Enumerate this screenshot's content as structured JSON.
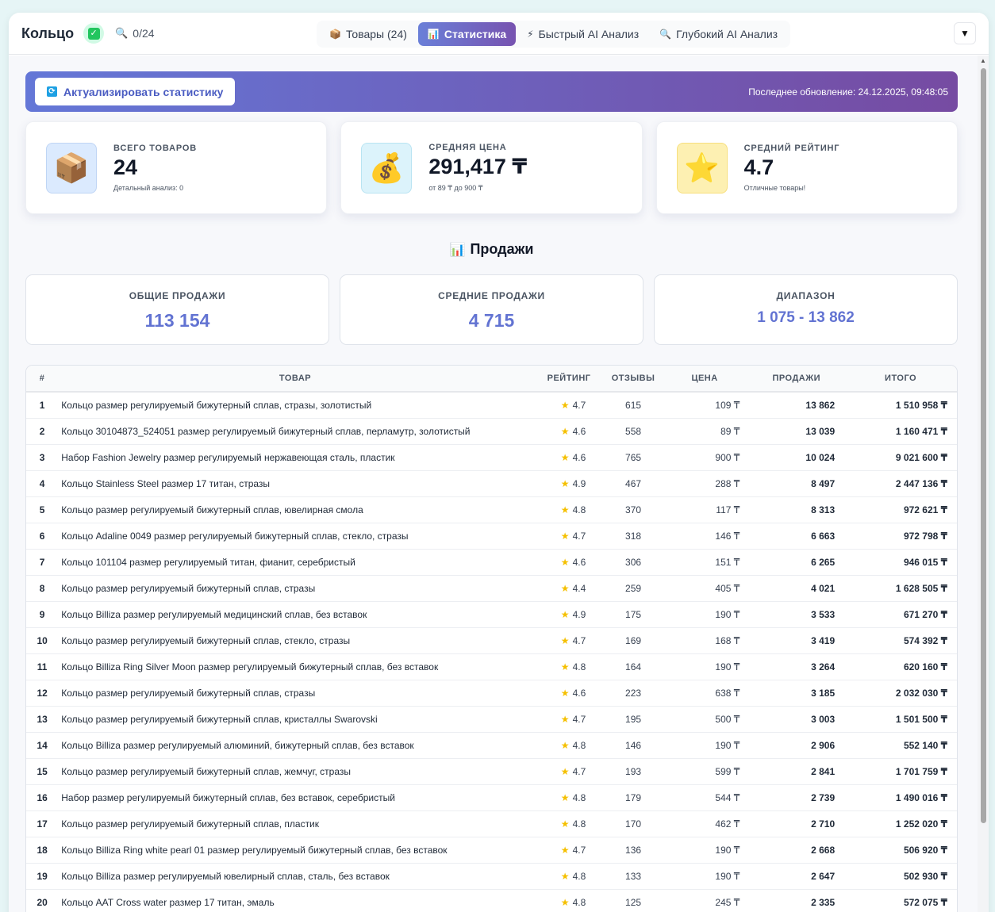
{
  "header": {
    "title": "Кольцо",
    "counter": "0/24",
    "tabs": [
      {
        "label": "Товары (24)",
        "icon": "📦"
      },
      {
        "label": "Статистика",
        "icon": "📊"
      },
      {
        "label": "Быстрый AI Анализ",
        "icon": "⚡"
      },
      {
        "label": "Глубокий AI Анализ",
        "icon": "🔍"
      }
    ],
    "dropdown_symbol": "▼"
  },
  "refresh": {
    "button_label": "Актуализировать статистику",
    "updated": "Последнее обновление: 24.12.2025, 09:48:05"
  },
  "cards": [
    {
      "label": "ВСЕГО ТОВАРОВ",
      "value": "24",
      "sub": "Детальный анализ: 0",
      "icon": "📦"
    },
    {
      "label": "СРЕДНЯЯ ЦЕНА",
      "value": "291,417 ₸",
      "sub": "от 89 ₸ до 900 ₸",
      "icon": "💰"
    },
    {
      "label": "СРЕДНИЙ РЕЙТИНГ",
      "value": "4.7",
      "sub": "Отличные товары!",
      "icon": "⭐"
    }
  ],
  "sales": {
    "title": "Продажи",
    "total": {
      "label": "ОБЩИЕ ПРОДАЖИ",
      "value": "113 154"
    },
    "average": {
      "label": "СРЕДНИЕ ПРОДАЖИ",
      "value": "4 715"
    },
    "range": {
      "label": "ДИАПАЗОН",
      "value": "1 075 - 13 862"
    }
  },
  "table": {
    "columns": [
      "#",
      "ТОВАР",
      "РЕЙТИНГ",
      "ОТЗЫВЫ",
      "ЦЕНА",
      "ПРОДАЖИ",
      "ИТОГО"
    ],
    "rows": [
      [
        "1",
        "Кольцо размер регулируемый бижутерный сплав, стразы, золотистый",
        "4.7",
        "615",
        "109 ₸",
        "13 862",
        "1 510 958 ₸"
      ],
      [
        "2",
        "Кольцо 30104873_524051 размер регулируемый бижутерный сплав, перламутр, золотистый",
        "4.6",
        "558",
        "89 ₸",
        "13 039",
        "1 160 471 ₸"
      ],
      [
        "3",
        "Набор Fashion Jewelry размер регулируемый нержавеющая сталь, пластик",
        "4.6",
        "765",
        "900 ₸",
        "10 024",
        "9 021 600 ₸"
      ],
      [
        "4",
        "Кольцо Stainless Steel размер 17 титан, стразы",
        "4.9",
        "467",
        "288 ₸",
        "8 497",
        "2 447 136 ₸"
      ],
      [
        "5",
        "Кольцо размер регулируемый бижутерный сплав, ювелирная смола",
        "4.8",
        "370",
        "117 ₸",
        "8 313",
        "972 621 ₸"
      ],
      [
        "6",
        "Кольцо Adaline 0049 размер регулируемый бижутерный сплав, стекло, стразы",
        "4.7",
        "318",
        "146 ₸",
        "6 663",
        "972 798 ₸"
      ],
      [
        "7",
        "Кольцо 101104 размер регулируемый титан, фианит, серебристый",
        "4.6",
        "306",
        "151 ₸",
        "6 265",
        "946 015 ₸"
      ],
      [
        "8",
        "Кольцо размер регулируемый бижутерный сплав, стразы",
        "4.4",
        "259",
        "405 ₸",
        "4 021",
        "1 628 505 ₸"
      ],
      [
        "9",
        "Кольцо Billiza размер регулируемый медицинский сплав, без вставок",
        "4.9",
        "175",
        "190 ₸",
        "3 533",
        "671 270 ₸"
      ],
      [
        "10",
        "Кольцо размер регулируемый бижутерный сплав, стекло, стразы",
        "4.7",
        "169",
        "168 ₸",
        "3 419",
        "574 392 ₸"
      ],
      [
        "11",
        "Кольцо Billiza Ring Silver Moon размер регулируемый бижутерный сплав, без вставок",
        "4.8",
        "164",
        "190 ₸",
        "3 264",
        "620 160 ₸"
      ],
      [
        "12",
        "Кольцо размер регулируемый бижутерный сплав, стразы",
        "4.6",
        "223",
        "638 ₸",
        "3 185",
        "2 032 030 ₸"
      ],
      [
        "13",
        "Кольцо размер регулируемый бижутерный сплав, кристаллы Swarovski",
        "4.7",
        "195",
        "500 ₸",
        "3 003",
        "1 501 500 ₸"
      ],
      [
        "14",
        "Кольцо Billiza размер регулируемый алюминий, бижутерный сплав, без вставок",
        "4.8",
        "146",
        "190 ₸",
        "2 906",
        "552 140 ₸"
      ],
      [
        "15",
        "Кольцо размер регулируемый бижутерный сплав, жемчуг, стразы",
        "4.7",
        "193",
        "599 ₸",
        "2 841",
        "1 701 759 ₸"
      ],
      [
        "16",
        "Набор размер регулируемый бижутерный сплав, без вставок, серебристый",
        "4.8",
        "179",
        "544 ₸",
        "2 739",
        "1 490 016 ₸"
      ],
      [
        "17",
        "Кольцо размер регулируемый бижутерный сплав, пластик",
        "4.8",
        "170",
        "462 ₸",
        "2 710",
        "1 252 020 ₸"
      ],
      [
        "18",
        "Кольцо Billiza Ring white pearl 01 размер регулируемый бижутерный сплав, без вставок",
        "4.7",
        "136",
        "190 ₸",
        "2 668",
        "506 920 ₸"
      ],
      [
        "19",
        "Кольцо Billiza размер регулируемый ювелирный сплав, сталь, без вставок",
        "4.8",
        "133",
        "190 ₸",
        "2 647",
        "502 930 ₸"
      ],
      [
        "20",
        "Кольцо AAT Cross water размер 17 титан, эмаль",
        "4.8",
        "125",
        "245 ₸",
        "2 335",
        "572 075 ₸"
      ]
    ]
  }
}
